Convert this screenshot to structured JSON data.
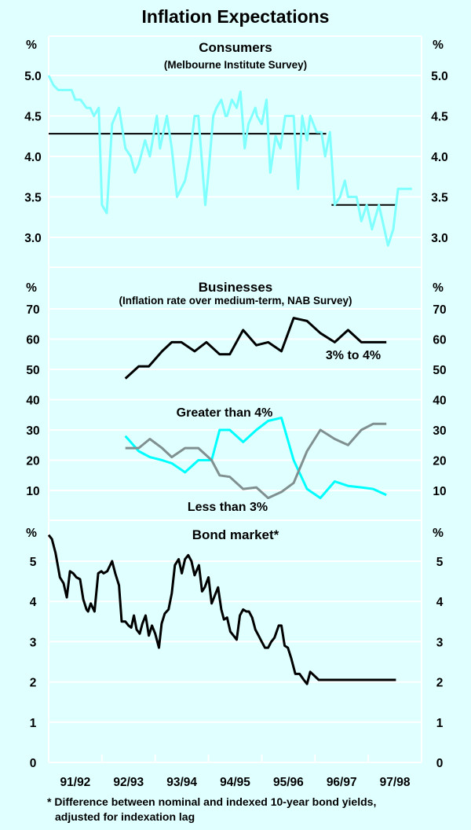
{
  "chart_data": {
    "type": "line",
    "title": "Inflation Expectations",
    "x_axis": {
      "units": "years since July 1991",
      "range": [
        0,
        7
      ],
      "tick_labels": [
        "91/92",
        "92/93",
        "93/94",
        "94/95",
        "95/96",
        "96/97",
        "97/98"
      ]
    },
    "panels": [
      {
        "id": "consumers",
        "title": "Consumers",
        "subtitle": "(Melbourne Institute Survey)",
        "y_unit_label": "%",
        "ylim": [
          2.6,
          5.4
        ],
        "y_ticks": [
          "5.0",
          "4.5",
          "4.0",
          "3.5",
          "3.0"
        ],
        "y_tick_values": [
          5.0,
          4.5,
          4.0,
          3.5,
          3.0
        ],
        "series": [
          {
            "name": "Consumer expectations",
            "color": "#80ffff",
            "x": [
              0,
              0.09,
              0.18,
              0.43,
              0.5,
              0.6,
              0.71,
              0.78,
              0.85,
              0.94,
              1.0,
              1.09,
              1.19,
              1.32,
              1.44,
              1.54,
              1.62,
              1.69,
              1.81,
              1.9,
              2.03,
              2.09,
              2.22,
              2.31,
              2.41,
              2.56,
              2.65,
              2.74,
              2.81,
              2.94,
              3.0,
              3.09,
              3.15,
              3.24,
              3.32,
              3.35,
              3.44,
              3.53,
              3.6,
              3.68,
              3.75,
              3.88,
              3.91,
              4.0,
              4.09,
              4.16,
              4.26,
              4.35,
              4.44,
              4.6,
              4.68,
              4.76,
              4.85,
              4.91,
              5.03,
              5.12,
              5.19,
              5.28,
              5.37,
              5.47,
              5.56,
              5.62,
              5.78,
              5.87,
              5.97,
              6.07,
              6.2,
              6.37,
              6.47,
              6.56,
              6.66,
              6.74,
              6.82
            ],
            "y": [
              5.0,
              4.88,
              4.82,
              4.82,
              4.7,
              4.7,
              4.6,
              4.6,
              4.5,
              4.6,
              3.4,
              3.3,
              4.4,
              4.6,
              4.1,
              4.0,
              3.8,
              3.9,
              4.2,
              4.0,
              4.5,
              4.1,
              4.5,
              4.1,
              3.5,
              3.7,
              4.0,
              4.5,
              4.5,
              3.4,
              3.8,
              4.5,
              4.6,
              4.7,
              4.5,
              4.5,
              4.7,
              4.6,
              4.8,
              4.1,
              4.4,
              4.6,
              4.5,
              4.4,
              4.7,
              3.8,
              4.25,
              4.1,
              4.5,
              4.5,
              3.6,
              4.5,
              4.2,
              4.5,
              4.3,
              4.3,
              4.0,
              4.3,
              3.4,
              3.5,
              3.7,
              3.5,
              3.5,
              3.2,
              3.4,
              3.1,
              3.4,
              2.9,
              3.1,
              3.6,
              3.6,
              3.6,
              3.6
            ]
          }
        ],
        "average_lines": [
          {
            "name": "Average (earlier period)",
            "value": 4.28,
            "x_start": 0,
            "x_end": 5.21,
            "color": "#000000"
          },
          {
            "name": "Average (later period)",
            "value": 3.4,
            "x_start": 5.31,
            "x_end": 6.53,
            "color": "#000000"
          }
        ]
      },
      {
        "id": "businesses",
        "title": "Businesses",
        "subtitle": "(Inflation rate over medium-term, NAB Survey)",
        "y_unit_label": "%",
        "ylim": [
          0,
          78
        ],
        "y_ticks": [
          "70",
          "60",
          "50",
          "40",
          "30",
          "20",
          "10"
        ],
        "y_tick_values": [
          70,
          60,
          50,
          40,
          30,
          20,
          10
        ],
        "series": [
          {
            "name": "3% to 4%",
            "color": "#000000",
            "label_text": "3% to 4%",
            "x": [
              1.44,
              1.69,
              1.88,
              2.13,
              2.31,
              2.49,
              2.74,
              2.96,
              3.21,
              3.4,
              3.65,
              3.9,
              4.12,
              4.37,
              4.6,
              4.85,
              5.1,
              5.37,
              5.62,
              5.87,
              6.09,
              6.34
            ],
            "y": [
              47,
              51,
              51,
              56,
              59,
              59,
              56,
              59,
              55,
              55,
              63,
              58,
              59,
              56,
              67,
              66,
              62,
              59,
              63,
              59,
              59,
              59
            ]
          },
          {
            "name": "Greater than 4%",
            "color": "#00ffff",
            "label_text": "Greater than 4%",
            "x": [
              1.44,
              1.69,
              1.9,
              2.13,
              2.31,
              2.56,
              2.81,
              3.06,
              3.21,
              3.4,
              3.65,
              3.9,
              4.12,
              4.37,
              4.6,
              4.85,
              5.1,
              5.37,
              5.62,
              5.87,
              6.09,
              6.34
            ],
            "y": [
              28,
              23,
              21,
              20,
              19,
              16,
              20,
              20,
              30,
              30,
              26,
              30,
              33,
              34,
              20,
              10.5,
              7.5,
              13,
              11.5,
              11,
              10.5,
              8.5
            ]
          },
          {
            "name": "Less than 3%",
            "color": "#808f8f",
            "label_text": "Less than 3%",
            "x": [
              1.44,
              1.69,
              1.9,
              2.13,
              2.31,
              2.56,
              2.81,
              3.06,
              3.21,
              3.4,
              3.65,
              3.9,
              4.12,
              4.37,
              4.6,
              4.85,
              5.1,
              5.37,
              5.62,
              5.87,
              6.09,
              6.34
            ],
            "y": [
              24,
              24,
              27,
              24,
              21,
              24,
              24,
              20,
              15,
              14.5,
              10.5,
              11,
              7.5,
              9.5,
              12.5,
              23,
              30,
              27,
              25,
              30,
              32,
              32
            ]
          }
        ]
      },
      {
        "id": "bond-market",
        "title": "Bond market*",
        "y_unit_label": "%",
        "ylim": [
          0,
          5.8
        ],
        "y_ticks": [
          "5",
          "4",
          "3",
          "2",
          "1",
          "0"
        ],
        "y_tick_values": [
          5,
          4,
          3,
          2,
          1,
          0
        ],
        "series": [
          {
            "name": "Bond market",
            "color": "#000000",
            "x": [
              0,
              0.06,
              0.13,
              0.21,
              0.28,
              0.34,
              0.4,
              0.46,
              0.52,
              0.59,
              0.65,
              0.71,
              0.74,
              0.79,
              0.86,
              0.93,
              0.99,
              1.03,
              1.1,
              1.19,
              1.25,
              1.32,
              1.37,
              1.44,
              1.5,
              1.55,
              1.6,
              1.65,
              1.71,
              1.76,
              1.82,
              1.88,
              1.94,
              2.0,
              2.07,
              2.12,
              2.18,
              2.25,
              2.31,
              2.37,
              2.44,
              2.5,
              2.56,
              2.62,
              2.68,
              2.74,
              2.82,
              2.88,
              2.93,
              3.0,
              3.06,
              3.12,
              3.18,
              3.24,
              3.29,
              3.35,
              3.41,
              3.47,
              3.53,
              3.59,
              3.65,
              3.71,
              3.76,
              3.82,
              3.88,
              3.94,
              4.0,
              4.06,
              4.12,
              4.18,
              4.24,
              4.32,
              4.37,
              4.43,
              4.49,
              4.55,
              4.63,
              4.71,
              4.79,
              4.85,
              4.91,
              4.99,
              5.07,
              5.15,
              5.21,
              5.28,
              5.34,
              5.41,
              5.47,
              5.53,
              5.6,
              5.66,
              5.72,
              5.78,
              5.84,
              5.9,
              5.96,
              6.02,
              6.09,
              6.16,
              6.22,
              6.28,
              6.34,
              6.4,
              6.46,
              6.52
            ],
            "y": [
              5.65,
              5.55,
              5.2,
              4.6,
              4.45,
              4.1,
              4.75,
              4.7,
              4.6,
              4.55,
              4.05,
              3.8,
              3.75,
              3.95,
              3.75,
              4.7,
              4.75,
              4.7,
              4.75,
              5.0,
              4.7,
              4.4,
              3.5,
              3.5,
              3.4,
              3.35,
              3.65,
              3.3,
              3.2,
              3.45,
              3.65,
              3.15,
              3.4,
              3.2,
              2.85,
              3.45,
              3.7,
              3.8,
              4.2,
              4.9,
              5.05,
              4.7,
              5.05,
              5.15,
              5.0,
              4.65,
              4.9,
              4.25,
              4.35,
              4.6,
              3.95,
              4.15,
              4.35,
              3.8,
              3.55,
              3.6,
              3.25,
              3.15,
              3.05,
              3.65,
              3.8,
              3.75,
              3.75,
              3.6,
              3.3,
              3.15,
              3.0,
              2.85,
              2.85,
              3.0,
              3.1,
              3.4,
              3.4,
              2.9,
              2.85,
              2.6,
              2.2,
              2.2,
              2.05,
              1.95,
              2.25,
              2.15,
              2.05,
              2.05,
              2.05,
              2.05,
              2.05,
              2.05,
              2.05,
              2.05,
              2.05,
              2.05,
              2.05,
              2.05,
              2.05,
              2.05,
              2.05,
              2.05,
              2.05,
              2.05,
              2.05,
              2.05,
              2.05,
              2.05,
              2.05,
              2.05
            ]
          }
        ]
      }
    ],
    "footnote_line1": "* Difference between nominal and indexed 10-year bond yields,",
    "footnote_line2": "adjusted for indexation lag"
  }
}
